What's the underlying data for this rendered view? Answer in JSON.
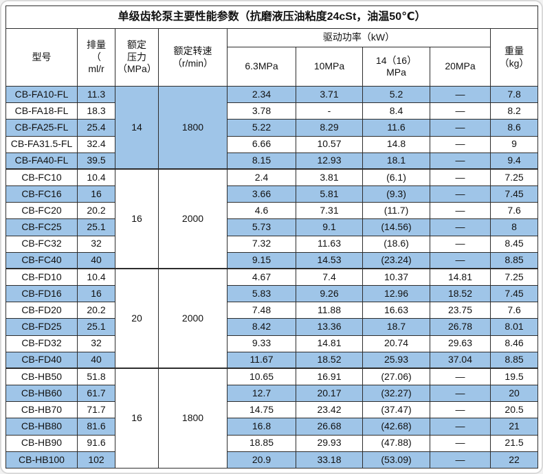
{
  "title": "单级齿轮泵主要性能参数（抗磨液压油粘度24cSt，油温50℃）",
  "header": {
    "model": "型号",
    "displacement": "排量\n（\nml/r",
    "pressure": "额定\n压力\n（MPa）",
    "speed": "额定转速\n（r/min）",
    "power_group": "驱动功率（kW）",
    "p63": "6.3MPa",
    "p10": "10MPa",
    "p1416": "14（16）\nMPa",
    "p20": "20MPa",
    "weight": "重量\n（kg）"
  },
  "colors": {
    "row_highlight": "#9fc5e8",
    "row_plain": "#ffffff",
    "border": "#2b2b2b",
    "page_background": "#f2f2f2"
  },
  "chart_data": {
    "type": "table",
    "title": "单级齿轮泵主要性能参数（抗磨液压油粘度24cSt，油温50℃）",
    "columns": [
      "型号",
      "排量（ml/r）",
      "额定压力（MPa）",
      "额定转速（r/min）",
      "驱动功率（kW）6.3MPa",
      "驱动功率（kW）10MPa",
      "驱动功率（kW）14（16）MPa",
      "驱动功率（kW）20MPa",
      "重量（kg）"
    ],
    "groups": [
      {
        "pressure": "14",
        "speed": "1800",
        "rows": [
          {
            "model": "CB-FA10-FL",
            "displacement": "11.3",
            "p63": "2.34",
            "p10": "3.71",
            "p1416": "5.2",
            "p20": "—",
            "weight": "7.8"
          },
          {
            "model": "CB-FA18-FL",
            "displacement": "18.3",
            "p63": "3.78",
            "p10": "-",
            "p1416": "8.4",
            "p20": "—",
            "weight": "8.2"
          },
          {
            "model": "CB-FA25-FL",
            "displacement": "25.4",
            "p63": "5.22",
            "p10": "8.29",
            "p1416": "11.6",
            "p20": "—",
            "weight": "8.6"
          },
          {
            "model": "CB-FA31.5-FL",
            "displacement": "32.4",
            "p63": "6.66",
            "p10": "10.57",
            "p1416": "14.8",
            "p20": "—",
            "weight": "9"
          },
          {
            "model": "CB-FA40-FL",
            "displacement": "39.5",
            "p63": "8.15",
            "p10": "12.93",
            "p1416": "18.1",
            "p20": "—",
            "weight": "9.4"
          }
        ]
      },
      {
        "pressure": "16",
        "speed": "2000",
        "rows": [
          {
            "model": "CB-FC10",
            "displacement": "10.4",
            "p63": "2.4",
            "p10": "3.81",
            "p1416": "(6.1)",
            "p20": "—",
            "weight": "7.25"
          },
          {
            "model": "CB-FC16",
            "displacement": "16",
            "p63": "3.66",
            "p10": "5.81",
            "p1416": "(9.3)",
            "p20": "—",
            "weight": "7.45"
          },
          {
            "model": "CB-FC20",
            "displacement": "20.2",
            "p63": "4.6",
            "p10": "7.31",
            "p1416": "(11.7)",
            "p20": "—",
            "weight": "7.6"
          },
          {
            "model": "CB-FC25",
            "displacement": "25.1",
            "p63": "5.73",
            "p10": "9.1",
            "p1416": "(14.56)",
            "p20": "—",
            "weight": "8"
          },
          {
            "model": "CB-FC32",
            "displacement": "32",
            "p63": "7.32",
            "p10": "11.63",
            "p1416": "(18.6)",
            "p20": "—",
            "weight": "8.45"
          },
          {
            "model": "CB-FC40",
            "displacement": "40",
            "p63": "9.15",
            "p10": "14.53",
            "p1416": "(23.24)",
            "p20": "—",
            "weight": "8.85"
          }
        ]
      },
      {
        "pressure": "20",
        "speed": "2000",
        "rows": [
          {
            "model": "CB-FD10",
            "displacement": "10.4",
            "p63": "4.67",
            "p10": "7.4",
            "p1416": "10.37",
            "p20": "14.81",
            "weight": "7.25"
          },
          {
            "model": "CB-FD16",
            "displacement": "16",
            "p63": "5.83",
            "p10": "9.26",
            "p1416": "12.96",
            "p20": "18.52",
            "weight": "7.45"
          },
          {
            "model": "CB-FD20",
            "displacement": "20.2",
            "p63": "7.48",
            "p10": "11.88",
            "p1416": "16.63",
            "p20": "23.75",
            "weight": "7.6"
          },
          {
            "model": "CB-FD25",
            "displacement": "25.1",
            "p63": "8.42",
            "p10": "13.36",
            "p1416": "18.7",
            "p20": "26.78",
            "weight": "8.01"
          },
          {
            "model": "CB-FD32",
            "displacement": "32",
            "p63": "9.33",
            "p10": "14.81",
            "p1416": "20.74",
            "p20": "29.63",
            "weight": "8.46"
          },
          {
            "model": "CB-FD40",
            "displacement": "40",
            "p63": "11.67",
            "p10": "18.52",
            "p1416": "25.93",
            "p20": "37.04",
            "weight": "8.85"
          }
        ]
      },
      {
        "pressure": "16",
        "speed": "1800",
        "rows": [
          {
            "model": "CB-HB50",
            "displacement": "51.8",
            "p63": "10.65",
            "p10": "16.91",
            "p1416": "(27.06)",
            "p20": "—",
            "weight": "19.5"
          },
          {
            "model": "CB-HB60",
            "displacement": "61.7",
            "p63": "12.7",
            "p10": "20.17",
            "p1416": "(32.27)",
            "p20": "—",
            "weight": "20"
          },
          {
            "model": "CB-HB70",
            "displacement": "71.7",
            "p63": "14.75",
            "p10": "23.42",
            "p1416": "(37.47)",
            "p20": "—",
            "weight": "20.5"
          },
          {
            "model": "CB-HB80",
            "displacement": "81.6",
            "p63": "16.8",
            "p10": "26.68",
            "p1416": "(42.68)",
            "p20": "—",
            "weight": "21"
          },
          {
            "model": "CB-HB90",
            "displacement": "91.6",
            "p63": "18.85",
            "p10": "29.93",
            "p1416": "(47.88)",
            "p20": "—",
            "weight": "21.5"
          },
          {
            "model": "CB-HB100",
            "displacement": "102",
            "p63": "20.9",
            "p10": "33.18",
            "p1416": "(53.09)",
            "p20": "—",
            "weight": "22"
          }
        ]
      }
    ]
  }
}
